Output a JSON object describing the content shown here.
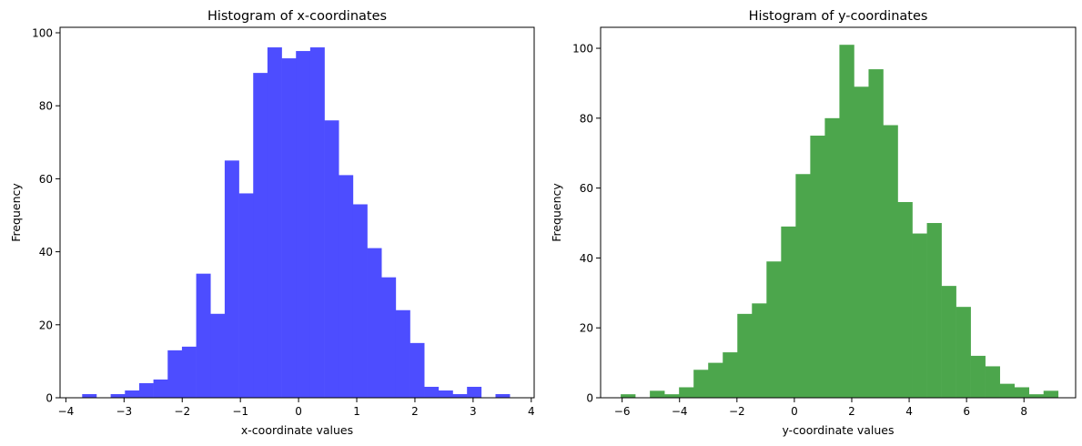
{
  "chart_data": [
    {
      "type": "bar",
      "title": "Histogram of x-coordinates",
      "xlabel": "x-coordinate values",
      "ylabel": "Frequency",
      "color": "#4d4dff",
      "xlim": [
        -4.1,
        4.05
      ],
      "ylim": [
        0,
        101.5
      ],
      "xticks": [
        -4,
        -3,
        -2,
        -1,
        0,
        1,
        2,
        3,
        4
      ],
      "yticks": [
        0,
        20,
        40,
        60,
        80,
        100
      ],
      "bin_start": -3.72,
      "bin_width": 0.245,
      "values": [
        1,
        0,
        1,
        2,
        4,
        5,
        13,
        14,
        34,
        23,
        65,
        56,
        89,
        96,
        93,
        95,
        96,
        76,
        61,
        53,
        41,
        33,
        24,
        15,
        3,
        2,
        1,
        3,
        0,
        1
      ],
      "grid": false
    },
    {
      "type": "bar",
      "title": "Histogram of y-coordinates",
      "xlabel": "y-coordinate values",
      "ylabel": "Frequency",
      "color": "#4ca64c",
      "xlim": [
        -6.75,
        9.8
      ],
      "ylim": [
        0,
        106
      ],
      "xticks": [
        -6,
        -4,
        -2,
        0,
        2,
        4,
        6,
        8
      ],
      "yticks": [
        0,
        20,
        40,
        60,
        80,
        100
      ],
      "bin_start": -6.05,
      "bin_width": 0.508,
      "values": [
        1,
        0,
        2,
        1,
        3,
        8,
        10,
        13,
        24,
        27,
        39,
        49,
        64,
        75,
        80,
        101,
        89,
        94,
        78,
        56,
        47,
        50,
        32,
        26,
        12,
        9,
        4,
        3,
        1,
        2
      ],
      "grid": false
    }
  ]
}
